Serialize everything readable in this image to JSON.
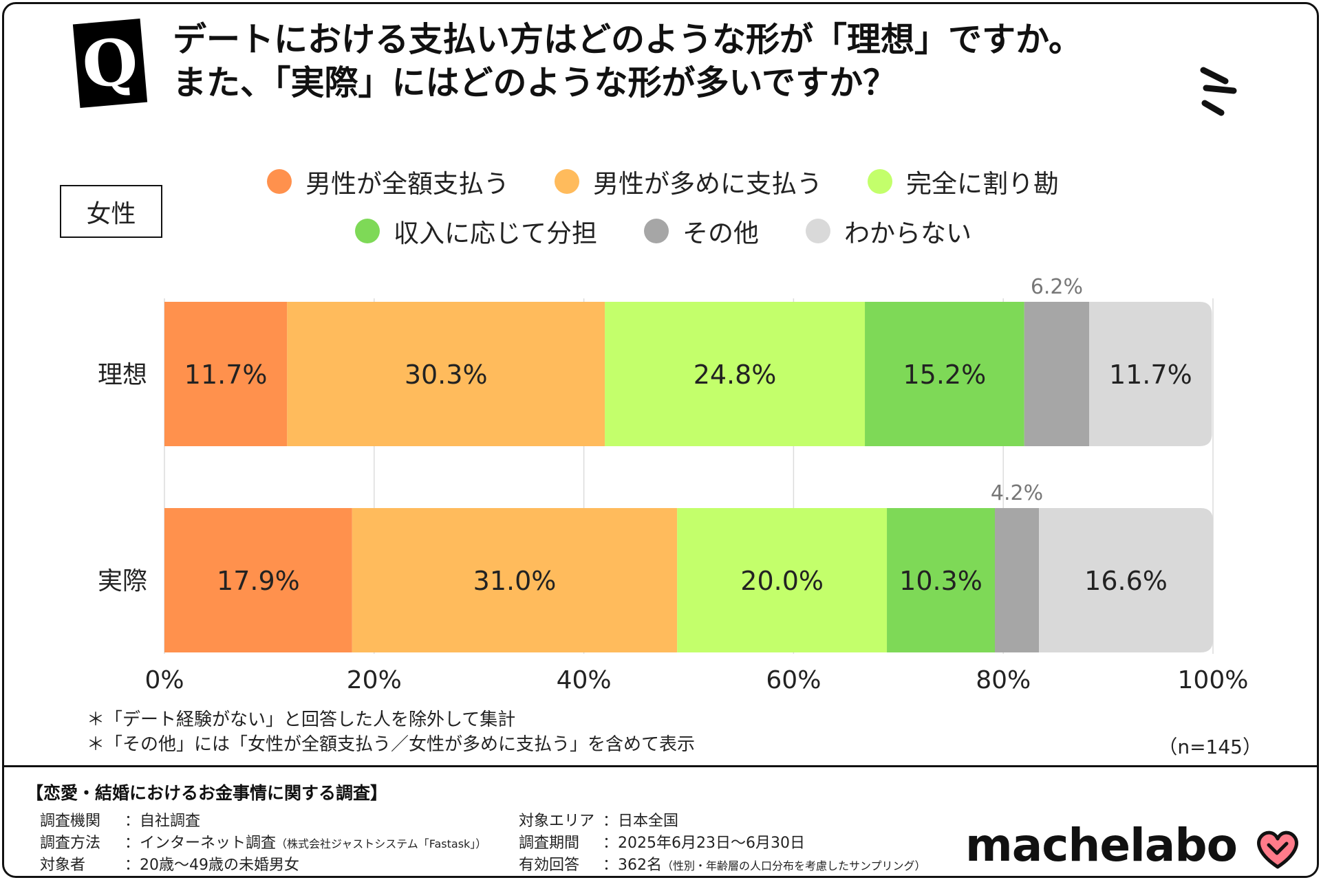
{
  "question": {
    "badge": "Q",
    "line1": "デートにおける支払い方はどのような形が「理想」ですか。",
    "line2": "また、「実際」にはどのような形が多いですか？"
  },
  "group_label": "女性",
  "chart_data": {
    "type": "bar",
    "orientation": "horizontal",
    "stacked": true,
    "categories": [
      "理想",
      "実際"
    ],
    "series": [
      {
        "name": "男性が全額支払う",
        "color": "#FF914D",
        "values": [
          11.7,
          17.9
        ],
        "labels": [
          "11.7%",
          "17.9%"
        ]
      },
      {
        "name": "男性が多めに支払う",
        "color": "#FFBB5C",
        "values": [
          30.3,
          31.0
        ],
        "labels": [
          "30.3%",
          "31.0%"
        ]
      },
      {
        "name": "完全に割り勘",
        "color": "#C3FF6B",
        "values": [
          24.8,
          20.0
        ],
        "labels": [
          "24.8%",
          "20.0%"
        ]
      },
      {
        "name": "収入に応じて分担",
        "color": "#7ED957",
        "values": [
          15.2,
          10.3
        ],
        "labels": [
          "15.2%",
          "10.3%"
        ]
      },
      {
        "name": "その他",
        "color": "#A6A6A6",
        "values": [
          6.2,
          4.2
        ],
        "labels": [
          "6.2%",
          "4.2%"
        ]
      },
      {
        "name": "わからない",
        "color": "#D9D9D9",
        "values": [
          11.7,
          16.6
        ],
        "labels": [
          "11.7%",
          "16.6%"
        ]
      }
    ],
    "xlim": [
      0,
      100
    ],
    "xticks": [
      "0%",
      "20%",
      "40%",
      "60%",
      "80%",
      "100%"
    ],
    "grid": true,
    "legend_position": "top"
  },
  "notes": [
    "＊「デート経験がない」と回答した人を除外して集計",
    "＊「その他」には「女性が全額支払う／女性が多めに支払う」を含めて表示"
  ],
  "sample_size": "（n=145）",
  "survey": {
    "title": "【恋愛・結婚におけるお金事情に関する調査】",
    "left": [
      {
        "key": "調査機関",
        "value": "：自社調査",
        "note": ""
      },
      {
        "key": "調査方法",
        "value": "：インターネット調査",
        "note": "（株式会社ジャストシステム「Fastask」）"
      },
      {
        "key": "対象者",
        "value": "：20歳〜49歳の未婚男女",
        "note": ""
      }
    ],
    "right": [
      {
        "key": "対象エリア",
        "value": "：日本全国",
        "note": ""
      },
      {
        "key": "調査期間",
        "value": "：2025年6月23日〜6月30日",
        "note": ""
      },
      {
        "key": "有効回答",
        "value": "：362名",
        "note": "（性別・年齢層の人口分布を考慮したサンプリング）"
      }
    ]
  },
  "brand": "machelabo"
}
